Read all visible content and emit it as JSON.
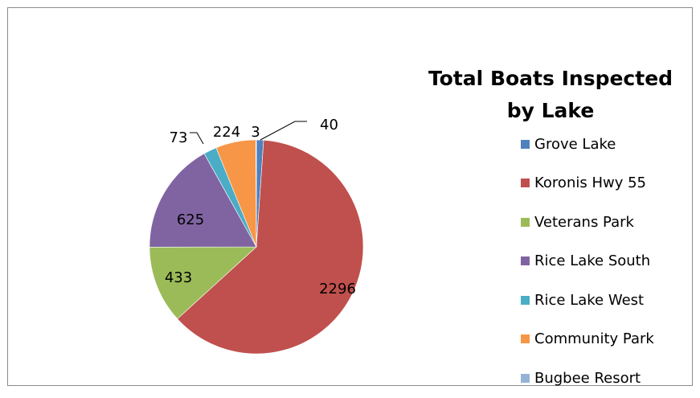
{
  "chart_data": {
    "type": "pie",
    "title": "Total Boats Inspected by Lake",
    "categories": [
      "Grove Lake",
      "Koronis Hwy 55",
      "Veterans Park",
      "Rice Lake South",
      "Rice Lake West",
      "Community Park",
      "Bugbee Resort"
    ],
    "values": [
      40,
      2296,
      433,
      625,
      73,
      224,
      3
    ],
    "colors": [
      "#4f81bd",
      "#c0504d",
      "#9bbb59",
      "#8064a2",
      "#4bacc6",
      "#f79646",
      "#95b3d7"
    ],
    "legend_position": "right",
    "start_angle_deg": 0,
    "direction": "clockwise"
  }
}
